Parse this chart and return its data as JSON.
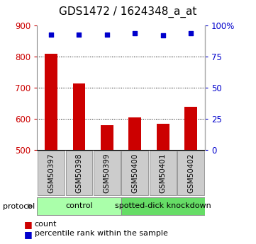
{
  "title": "GDS1472 / 1624348_a_at",
  "samples": [
    "GSM50397",
    "GSM50398",
    "GSM50399",
    "GSM50400",
    "GSM50401",
    "GSM50402"
  ],
  "counts": [
    810,
    715,
    580,
    606,
    585,
    638
  ],
  "percentiles": [
    93,
    93,
    93,
    94,
    92,
    94
  ],
  "ymin": 500,
  "ymax": 900,
  "yticks": [
    500,
    600,
    700,
    800,
    900
  ],
  "right_yticks": [
    0,
    25,
    50,
    75,
    100
  ],
  "bar_color": "#cc0000",
  "dot_color": "#0000cc",
  "groups": [
    {
      "label": "control",
      "indices": [
        0,
        1,
        2
      ],
      "color": "#aaffaa"
    },
    {
      "label": "spotted-dick knockdown",
      "indices": [
        3,
        4,
        5
      ],
      "color": "#66dd66"
    }
  ],
  "protocol_label": "protocol",
  "legend_items": [
    {
      "label": "count",
      "color": "#cc0000"
    },
    {
      "label": "percentile rank within the sample",
      "color": "#0000cc"
    }
  ],
  "tick_label_color": "#cc0000",
  "right_tick_color": "#0000cc",
  "title_fontsize": 11,
  "axis_fontsize": 8.5,
  "sample_label_fontsize": 7.5,
  "group_label_fontsize": 8,
  "legend_fontsize": 8,
  "bar_width": 0.45
}
